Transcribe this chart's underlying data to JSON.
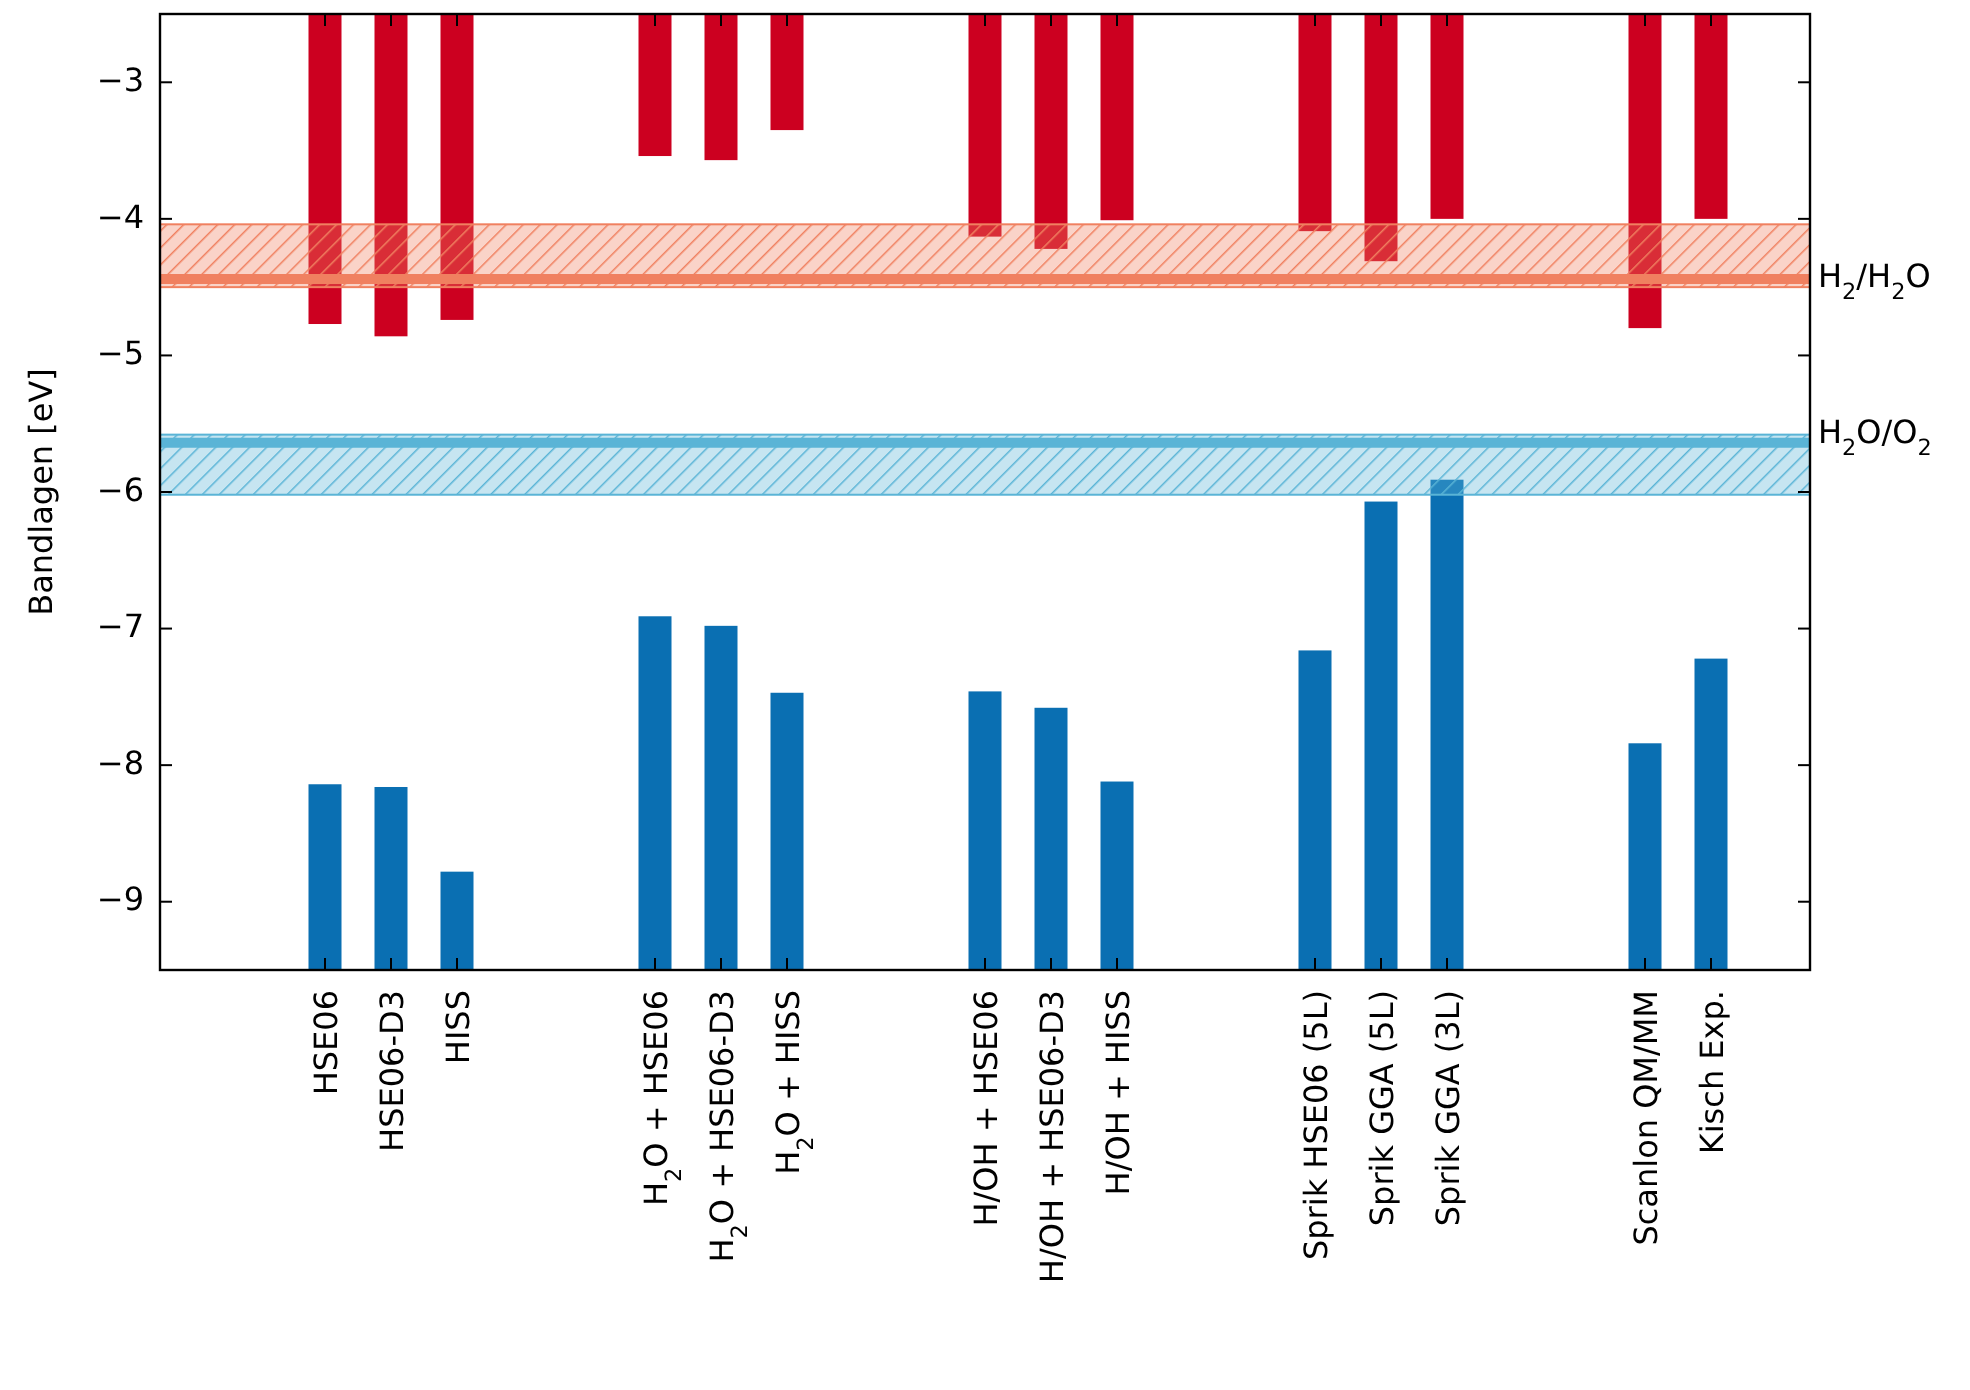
{
  "chart_data": {
    "type": "bar",
    "ylabel": "Bandlagen [eV]",
    "categories": [
      null,
      null,
      "HSE06",
      "HSE06-D3",
      "HISS",
      null,
      null,
      "H$_{2}$O + HSE06",
      "H$_{2}$O + HSE06-D3",
      "H$_{2}$O + HISS",
      null,
      null,
      "H/OH + HSE06",
      "H/OH + HSE06-D3",
      "H/OH + HISS",
      null,
      null,
      "Sprik HSE06 (5L)",
      "Sprik GGA (5L)",
      "Sprik GGA (3L)",
      null,
      null,
      "Scanlon QM/MM",
      "Kisch Exp.",
      null
    ],
    "series": [
      {
        "color": "#cc0020",
        "base": [
          null,
          null,
          -2.5,
          -2.5,
          -2.5,
          null,
          null,
          -2.5,
          -2.5,
          -2.5,
          null,
          null,
          -2.5,
          -2.5,
          -2.5,
          null,
          null,
          -2.5,
          -2.5,
          -2.5,
          null,
          null,
          -2.5,
          -2.5,
          null
        ],
        "values": [
          null,
          null,
          -2.27,
          -2.36,
          -2.24,
          null,
          null,
          -1.04,
          -1.07,
          -0.85,
          null,
          null,
          -1.63,
          -1.72,
          -1.51,
          null,
          null,
          -1.59,
          -1.81,
          -1.5,
          null,
          null,
          -2.3,
          -1.5,
          null
        ]
      },
      {
        "color": "#0a6fb2",
        "base": [
          null,
          null,
          -9.5,
          -9.5,
          -9.5,
          null,
          null,
          -9.5,
          -9.5,
          -9.5,
          null,
          null,
          -9.5,
          -9.5,
          -9.5,
          null,
          null,
          -9.5,
          -9.5,
          -9.5,
          null,
          null,
          -9.5,
          -9.5,
          null
        ],
        "values": [
          null,
          null,
          1.36,
          1.34,
          0.72,
          null,
          null,
          2.59,
          2.52,
          2.03,
          null,
          null,
          2.04,
          1.92,
          1.38,
          null,
          null,
          2.34,
          3.43,
          3.59,
          null,
          null,
          1.66,
          2.28,
          null
        ]
      }
    ],
    "ylim": [
      -9.5,
      -2.5
    ],
    "yticks": [
      -3,
      -4,
      -5,
      -6,
      -7,
      -8,
      -9
    ],
    "grid": false,
    "bands": [
      {
        "axis": "y",
        "from": -4.04,
        "to": -4.5,
        "color": "#f08060"
      },
      {
        "axis": "y",
        "from": -5.58,
        "to": -6.02,
        "color": "#5ab4d6"
      }
    ],
    "ref_lines": [
      {
        "axis": "y",
        "value": -4.44,
        "label": "H$_{2}$/H$_{2}$O",
        "color": "#f08060"
      },
      {
        "axis": "y",
        "value": -5.64,
        "label": "H$_{2}$O/O$_{2}$",
        "color": "#5ab4d6"
      }
    ]
  }
}
